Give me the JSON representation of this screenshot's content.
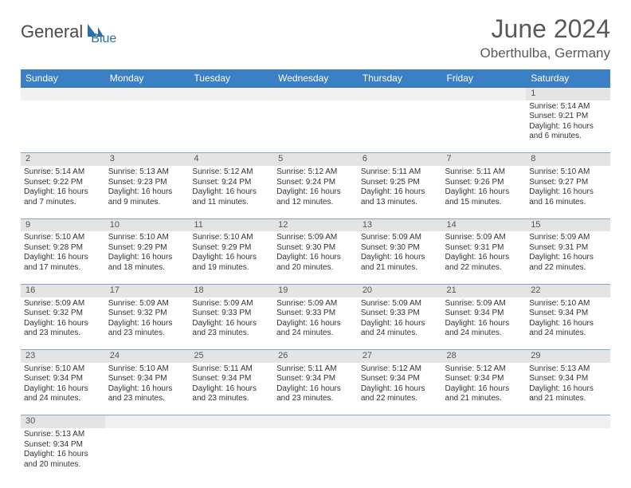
{
  "logo": {
    "part1": "General",
    "part2": "Blue"
  },
  "title": "June 2024",
  "location": "Oberthulba, Germany",
  "colors": {
    "header_bg": "#3b7fc4",
    "header_text": "#ffffff",
    "border": "#7ba9d6",
    "daynum_bg": "#e4e4e4",
    "logo_blue": "#2b6faf"
  },
  "dayHeaders": [
    "Sunday",
    "Monday",
    "Tuesday",
    "Wednesday",
    "Thursday",
    "Friday",
    "Saturday"
  ],
  "weeks": [
    [
      null,
      null,
      null,
      null,
      null,
      null,
      {
        "n": "1",
        "sr": "5:14 AM",
        "ss": "9:21 PM",
        "dh": "16",
        "dm": "6"
      }
    ],
    [
      {
        "n": "2",
        "sr": "5:14 AM",
        "ss": "9:22 PM",
        "dh": "16",
        "dm": "7"
      },
      {
        "n": "3",
        "sr": "5:13 AM",
        "ss": "9:23 PM",
        "dh": "16",
        "dm": "9"
      },
      {
        "n": "4",
        "sr": "5:12 AM",
        "ss": "9:24 PM",
        "dh": "16",
        "dm": "11"
      },
      {
        "n": "5",
        "sr": "5:12 AM",
        "ss": "9:24 PM",
        "dh": "16",
        "dm": "12"
      },
      {
        "n": "6",
        "sr": "5:11 AM",
        "ss": "9:25 PM",
        "dh": "16",
        "dm": "13"
      },
      {
        "n": "7",
        "sr": "5:11 AM",
        "ss": "9:26 PM",
        "dh": "16",
        "dm": "15"
      },
      {
        "n": "8",
        "sr": "5:10 AM",
        "ss": "9:27 PM",
        "dh": "16",
        "dm": "16"
      }
    ],
    [
      {
        "n": "9",
        "sr": "5:10 AM",
        "ss": "9:28 PM",
        "dh": "16",
        "dm": "17"
      },
      {
        "n": "10",
        "sr": "5:10 AM",
        "ss": "9:29 PM",
        "dh": "16",
        "dm": "18"
      },
      {
        "n": "11",
        "sr": "5:10 AM",
        "ss": "9:29 PM",
        "dh": "16",
        "dm": "19"
      },
      {
        "n": "12",
        "sr": "5:09 AM",
        "ss": "9:30 PM",
        "dh": "16",
        "dm": "20"
      },
      {
        "n": "13",
        "sr": "5:09 AM",
        "ss": "9:30 PM",
        "dh": "16",
        "dm": "21"
      },
      {
        "n": "14",
        "sr": "5:09 AM",
        "ss": "9:31 PM",
        "dh": "16",
        "dm": "22"
      },
      {
        "n": "15",
        "sr": "5:09 AM",
        "ss": "9:31 PM",
        "dh": "16",
        "dm": "22"
      }
    ],
    [
      {
        "n": "16",
        "sr": "5:09 AM",
        "ss": "9:32 PM",
        "dh": "16",
        "dm": "23"
      },
      {
        "n": "17",
        "sr": "5:09 AM",
        "ss": "9:32 PM",
        "dh": "16",
        "dm": "23"
      },
      {
        "n": "18",
        "sr": "5:09 AM",
        "ss": "9:33 PM",
        "dh": "16",
        "dm": "23"
      },
      {
        "n": "19",
        "sr": "5:09 AM",
        "ss": "9:33 PM",
        "dh": "16",
        "dm": "24"
      },
      {
        "n": "20",
        "sr": "5:09 AM",
        "ss": "9:33 PM",
        "dh": "16",
        "dm": "24"
      },
      {
        "n": "21",
        "sr": "5:09 AM",
        "ss": "9:34 PM",
        "dh": "16",
        "dm": "24"
      },
      {
        "n": "22",
        "sr": "5:10 AM",
        "ss": "9:34 PM",
        "dh": "16",
        "dm": "24"
      }
    ],
    [
      {
        "n": "23",
        "sr": "5:10 AM",
        "ss": "9:34 PM",
        "dh": "16",
        "dm": "24"
      },
      {
        "n": "24",
        "sr": "5:10 AM",
        "ss": "9:34 PM",
        "dh": "16",
        "dm": "23"
      },
      {
        "n": "25",
        "sr": "5:11 AM",
        "ss": "9:34 PM",
        "dh": "16",
        "dm": "23"
      },
      {
        "n": "26",
        "sr": "5:11 AM",
        "ss": "9:34 PM",
        "dh": "16",
        "dm": "23"
      },
      {
        "n": "27",
        "sr": "5:12 AM",
        "ss": "9:34 PM",
        "dh": "16",
        "dm": "22"
      },
      {
        "n": "28",
        "sr": "5:12 AM",
        "ss": "9:34 PM",
        "dh": "16",
        "dm": "21"
      },
      {
        "n": "29",
        "sr": "5:13 AM",
        "ss": "9:34 PM",
        "dh": "16",
        "dm": "21"
      }
    ],
    [
      {
        "n": "30",
        "sr": "5:13 AM",
        "ss": "9:34 PM",
        "dh": "16",
        "dm": "20"
      },
      null,
      null,
      null,
      null,
      null,
      null
    ]
  ]
}
